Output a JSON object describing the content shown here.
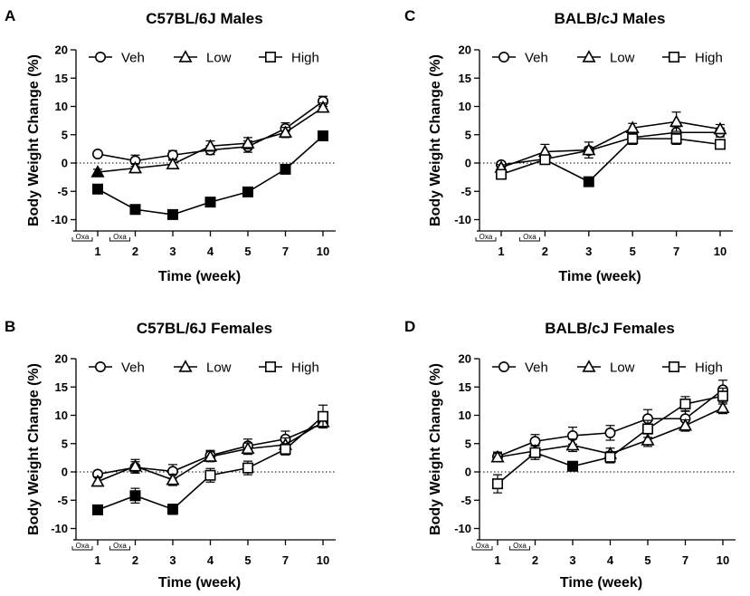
{
  "chart_data": [
    {
      "panel": "A",
      "type": "line",
      "title": "C57BL/6J Males",
      "xlabel": "Time (week)",
      "ylabel": "Body Weight Change (%)",
      "categories": [
        "1",
        "2",
        "3",
        "4",
        "5",
        "7",
        "10"
      ],
      "yticks": [
        "-10",
        "-5",
        "0",
        "5",
        "10",
        "15",
        "20"
      ],
      "ylim": [
        -12,
        20
      ],
      "oxa_label": "Oxa",
      "series": [
        {
          "name": "Veh",
          "marker": "circle",
          "values": [
            1.6,
            0.4,
            1.4,
            2.3,
            2.9,
            6.1,
            10.9
          ],
          "errors": [
            0.5,
            1.0,
            0.8,
            0.8,
            1.0,
            1.0,
            0.9
          ],
          "filled": [
            false,
            false,
            false,
            false,
            false,
            false,
            false
          ]
        },
        {
          "name": "Low",
          "marker": "triangle",
          "values": [
            -1.6,
            -0.9,
            -0.2,
            3.0,
            3.5,
            5.4,
            9.8
          ],
          "errors": [
            0.5,
            0.8,
            0.7,
            0.9,
            1.0,
            0.9,
            0.8
          ],
          "filled": [
            true,
            false,
            false,
            false,
            false,
            false,
            false
          ]
        },
        {
          "name": "High",
          "marker": "square",
          "values": [
            -4.6,
            -8.2,
            -9.1,
            -6.9,
            -5.1,
            -1.1,
            4.8
          ],
          "errors": [
            0.5,
            0.5,
            0.5,
            0.5,
            0.5,
            0.5,
            0.5
          ],
          "filled": [
            true,
            true,
            true,
            true,
            true,
            true,
            true
          ]
        }
      ]
    },
    {
      "panel": "C",
      "type": "line",
      "title": "BALB/cJ Males",
      "xlabel": "Time (week)",
      "ylabel": "Body Weight Change (%)",
      "categories": [
        "1",
        "2",
        "3",
        "5",
        "7",
        "10"
      ],
      "yticks": [
        "-10",
        "-5",
        "0",
        "5",
        "10",
        "15",
        "20"
      ],
      "ylim": [
        -12,
        20
      ],
      "oxa_label": "Oxa",
      "series": [
        {
          "name": "Veh",
          "marker": "circle",
          "values": [
            -0.3,
            0.7,
            2.2,
            4.5,
            5.4,
            5.4
          ],
          "errors": [
            0.5,
            0.6,
            0.6,
            0.8,
            1.0,
            0.8
          ],
          "filled": [
            false,
            false,
            false,
            false,
            false,
            false
          ]
        },
        {
          "name": "Low",
          "marker": "triangle",
          "values": [
            -0.8,
            2.0,
            2.3,
            6.2,
            7.3,
            6.0
          ],
          "errors": [
            0.5,
            1.3,
            1.4,
            0.8,
            1.7,
            0.8
          ],
          "filled": [
            false,
            false,
            false,
            false,
            false,
            false
          ]
        },
        {
          "name": "High",
          "marker": "square",
          "values": [
            -2.0,
            0.6,
            -3.3,
            4.3,
            4.3,
            3.3
          ],
          "errors": [
            0.6,
            0.7,
            0.5,
            1.0,
            1.0,
            0.7
          ],
          "filled": [
            false,
            false,
            true,
            false,
            false,
            false
          ]
        }
      ]
    },
    {
      "panel": "B",
      "type": "line",
      "title": "C57BL/6J Females",
      "xlabel": "Time (week)",
      "ylabel": "Body Weight Change (%)",
      "categories": [
        "1",
        "2",
        "3",
        "4",
        "5",
        "7",
        "10"
      ],
      "yticks": [
        "-10",
        "-5",
        "0",
        "5",
        "10",
        "15",
        "20"
      ],
      "ylim": [
        -12,
        20
      ],
      "oxa_label": "Oxa",
      "series": [
        {
          "name": "Veh",
          "marker": "circle",
          "values": [
            -0.4,
            0.8,
            0.1,
            2.9,
            4.6,
            5.8,
            8.6
          ],
          "errors": [
            0.5,
            1.0,
            1.2,
            0.9,
            1.2,
            1.4,
            0.8
          ],
          "filled": [
            false,
            false,
            false,
            false,
            false,
            false,
            false
          ]
        },
        {
          "name": "Low",
          "marker": "triangle",
          "values": [
            -1.7,
            1.0,
            -1.4,
            2.7,
            4.1,
            4.8,
            8.8
          ],
          "errors": [
            0.8,
            1.2,
            1.0,
            0.9,
            1.0,
            1.2,
            0.8
          ],
          "filled": [
            false,
            false,
            false,
            false,
            false,
            false,
            false
          ]
        },
        {
          "name": "High",
          "marker": "square",
          "values": [
            -6.7,
            -4.2,
            -6.6,
            -0.6,
            0.7,
            4.0,
            9.8
          ],
          "errors": [
            0.5,
            1.3,
            0.9,
            1.2,
            1.2,
            1.0,
            2.0
          ],
          "filled": [
            true,
            true,
            true,
            false,
            false,
            false,
            false
          ]
        }
      ]
    },
    {
      "panel": "D",
      "type": "line",
      "title": "BALB/cJ Females",
      "xlabel": "Time (week)",
      "ylabel": "Body Weight Change (%)",
      "categories": [
        "1",
        "2",
        "3",
        "4",
        "5",
        "7",
        "10"
      ],
      "yticks": [
        "-10",
        "-5",
        "0",
        "5",
        "10",
        "15",
        "20"
      ],
      "ylim": [
        -12,
        20
      ],
      "oxa_label": "Oxa",
      "series": [
        {
          "name": "Veh",
          "marker": "circle",
          "values": [
            2.7,
            5.4,
            6.4,
            6.9,
            9.4,
            9.4,
            14.5
          ],
          "errors": [
            0.8,
            1.2,
            1.5,
            1.3,
            1.6,
            1.4,
            1.7
          ],
          "filled": [
            false,
            false,
            false,
            false,
            false,
            false,
            false
          ]
        },
        {
          "name": "Low",
          "marker": "triangle",
          "values": [
            2.6,
            3.7,
            4.7,
            3.2,
            5.6,
            8.2,
            11.3
          ],
          "errors": [
            0.7,
            1.0,
            1.1,
            1.0,
            1.1,
            1.0,
            1.0
          ],
          "filled": [
            false,
            false,
            false,
            false,
            false,
            false,
            false
          ]
        },
        {
          "name": "High",
          "marker": "square",
          "values": [
            -2.1,
            3.4,
            1.0,
            2.6,
            7.6,
            12.0,
            13.4
          ],
          "errors": [
            1.6,
            1.2,
            0.5,
            1.0,
            1.5,
            1.3,
            1.4
          ],
          "filled": [
            false,
            false,
            true,
            false,
            false,
            false,
            false
          ]
        }
      ]
    }
  ]
}
